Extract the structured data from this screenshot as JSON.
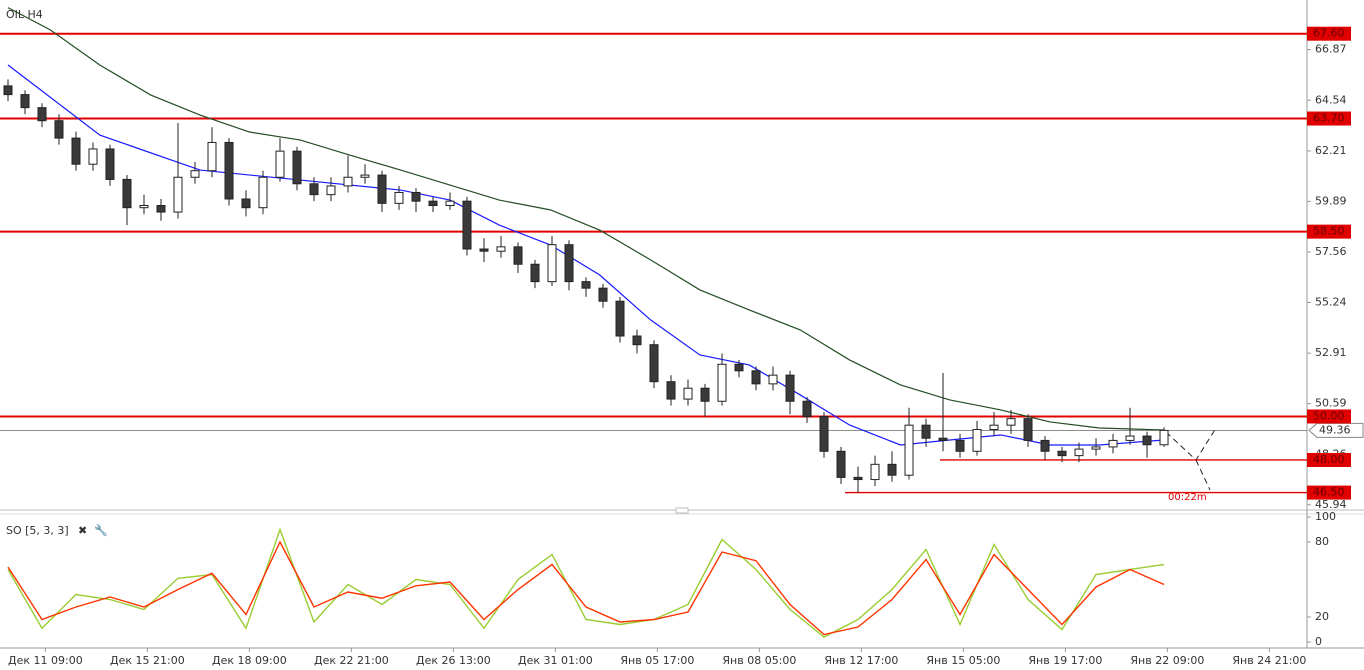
{
  "chart_data": {
    "type": "candlestick",
    "title": "OIL H4",
    "ylim": [
      45.7,
      69.15
    ],
    "yticks": [
      66.87,
      64.54,
      62.21,
      59.89,
      57.56,
      55.24,
      52.91,
      50.59,
      48.26,
      45.94
    ],
    "xlim": [
      -0.47,
      76.41
    ],
    "xticks": [
      {
        "value": 2.2,
        "label": "Дек 11 09:00"
      },
      {
        "value": 8.2,
        "label": "Дек 15 21:00"
      },
      {
        "value": 14.2,
        "label": "Дек 18 09:00"
      },
      {
        "value": 20.2,
        "label": "Дек 22 21:00"
      },
      {
        "value": 26.2,
        "label": "Дек 26 13:00"
      },
      {
        "value": 32.2,
        "label": "Дек 31 01:00"
      },
      {
        "value": 38.2,
        "label": "Янв 05 17:00"
      },
      {
        "value": 44.2,
        "label": "Янв 08 05:00"
      },
      {
        "value": 50.2,
        "label": "Янв 12 17:00"
      },
      {
        "value": 56.2,
        "label": "Янв 15 05:00"
      },
      {
        "value": 62.2,
        "label": "Янв 19 17:00"
      },
      {
        "value": 68.2,
        "label": "Янв 22 09:00"
      },
      {
        "value": 74.2,
        "label": "Янв 24 21:00"
      }
    ],
    "open": [
      65.2,
      64.8,
      64.2,
      63.6,
      62.8,
      61.6,
      62.3,
      60.9,
      59.6,
      59.7,
      59.4,
      61.0,
      61.3,
      62.6,
      60.0,
      59.6,
      61.0,
      62.2,
      60.7,
      60.2,
      60.6,
      61.0,
      61.1,
      59.8,
      60.3,
      59.9,
      59.7,
      59.9,
      57.7,
      57.6,
      57.8,
      57.0,
      56.2,
      57.9,
      56.2,
      55.9,
      55.3,
      53.7,
      53.3,
      51.6,
      50.8,
      51.3,
      50.7,
      52.4,
      52.1,
      51.5,
      51.9,
      50.7,
      50.0,
      48.4,
      47.2,
      47.1,
      47.8,
      47.3,
      49.6,
      49.0,
      48.9,
      48.4,
      49.4,
      49.6,
      49.9,
      48.9,
      48.4,
      48.2,
      48.5,
      48.6,
      48.9,
      49.1,
      48.7
    ],
    "high": [
      65.5,
      65.0,
      64.4,
      63.9,
      63.1,
      62.6,
      62.5,
      61.1,
      60.2,
      60.0,
      63.5,
      61.7,
      63.3,
      62.8,
      60.4,
      61.3,
      62.8,
      62.4,
      61.0,
      61.0,
      62.0,
      61.6,
      61.3,
      60.6,
      60.5,
      60.1,
      60.3,
      60.1,
      58.2,
      58.3,
      58.0,
      57.2,
      58.3,
      58.1,
      56.4,
      56.1,
      55.5,
      54.0,
      53.5,
      51.9,
      51.7,
      51.5,
      52.9,
      52.6,
      52.3,
      52.3,
      52.1,
      50.9,
      50.2,
      48.6,
      47.7,
      48.2,
      48.4,
      50.4,
      49.9,
      52.0,
      49.2,
      49.8,
      50.2,
      50.3,
      50.1,
      49.1,
      48.6,
      48.8,
      49.0,
      49.2,
      50.4,
      49.3,
      49.5
    ],
    "low": [
      64.5,
      63.9,
      63.3,
      62.5,
      61.3,
      61.3,
      60.6,
      58.8,
      59.3,
      59.0,
      59.1,
      60.7,
      61.0,
      59.7,
      59.2,
      59.3,
      60.8,
      60.4,
      59.9,
      59.9,
      60.3,
      60.7,
      59.4,
      59.5,
      59.4,
      59.4,
      59.5,
      57.4,
      57.1,
      57.3,
      56.6,
      55.9,
      56.0,
      55.8,
      55.5,
      55.0,
      53.4,
      52.9,
      51.3,
      50.5,
      50.5,
      50.0,
      50.5,
      51.8,
      51.2,
      51.2,
      50.1,
      49.7,
      48.1,
      46.9,
      46.5,
      46.8,
      47.0,
      47.1,
      48.6,
      48.4,
      48.1,
      48.2,
      49.1,
      49.2,
      48.6,
      48.0,
      47.9,
      47.9,
      48.2,
      48.3,
      48.7,
      48.1,
      48.6
    ],
    "close": [
      64.8,
      64.2,
      63.6,
      62.8,
      61.6,
      62.3,
      60.9,
      59.6,
      59.7,
      59.4,
      61.0,
      61.3,
      62.6,
      60.0,
      59.6,
      61.0,
      62.2,
      60.7,
      60.2,
      60.6,
      61.0,
      61.1,
      59.8,
      60.3,
      59.9,
      59.7,
      59.9,
      57.7,
      57.6,
      57.8,
      57.0,
      56.2,
      57.9,
      56.2,
      55.9,
      55.3,
      53.7,
      53.3,
      51.6,
      50.8,
      51.3,
      50.7,
      52.4,
      52.1,
      51.5,
      51.9,
      50.7,
      50.0,
      48.4,
      47.2,
      47.1,
      47.8,
      47.3,
      49.6,
      49.0,
      48.9,
      48.4,
      49.4,
      49.6,
      49.9,
      48.9,
      48.4,
      48.2,
      48.5,
      48.6,
      48.9,
      49.1,
      48.7,
      49.36
    ],
    "ma_fast": {
      "color": "#1a1aff",
      "x": [
        0,
        5.4,
        11.3,
        17.2,
        23.1,
        26.0,
        28.9,
        31.9,
        34.8,
        37.8,
        40.7,
        43.6,
        46.6,
        49.5,
        52.5,
        55.4,
        58.4,
        61.3,
        64.2,
        68
      ],
      "values": [
        66.16,
        62.94,
        61.33,
        60.87,
        60.41,
        59.95,
        58.8,
        57.89,
        56.51,
        54.44,
        52.83,
        52.37,
        50.99,
        49.61,
        48.69,
        48.92,
        49.15,
        48.69,
        48.69,
        48.92
      ]
    },
    "ma_slow": {
      "color": "#244d24",
      "x": [
        0,
        2.5,
        5.4,
        8.4,
        11.3,
        14.2,
        17.2,
        20.1,
        23.1,
        26.0,
        28.9,
        31.9,
        34.8,
        37.8,
        40.7,
        43.6,
        46.6,
        49.5,
        52.5,
        55.4,
        58.4,
        61.3,
        64.2,
        68
      ],
      "values": [
        68.8,
        67.77,
        66.16,
        64.78,
        63.86,
        63.08,
        62.71,
        62.02,
        61.33,
        60.64,
        59.95,
        59.5,
        58.57,
        57.2,
        55.82,
        54.9,
        53.98,
        52.6,
        51.45,
        50.76,
        50.3,
        49.75,
        49.47,
        49.38
      ]
    },
    "levels": [
      {
        "value": 67.6,
        "label": "67.60"
      },
      {
        "value": 63.7,
        "label": "63.70"
      },
      {
        "value": 58.5,
        "label": "58.50"
      },
      {
        "value": 50.0,
        "label": "50.00"
      },
      {
        "value": 48.0,
        "label": "48.00"
      },
      {
        "value": 46.5,
        "label": "46.50"
      }
    ],
    "current_price": 49.36,
    "timer": "00:22m",
    "oscillator": {
      "title": "SO [5, 3, 3]",
      "ylim": [
        0,
        100
      ],
      "yticks": [
        100,
        80,
        20,
        0
      ],
      "x": [
        0,
        2,
        4,
        6,
        8,
        10,
        12,
        14,
        16,
        18,
        20,
        22,
        24,
        26,
        28,
        30,
        32,
        34,
        36,
        38,
        40,
        42,
        44,
        46,
        48,
        50,
        52,
        54,
        56,
        58,
        60,
        62,
        64,
        66,
        68
      ],
      "k": {
        "color": "#9acd32",
        "values": [
          58,
          11,
          38,
          34,
          26,
          51,
          54,
          11,
          90,
          16,
          46,
          30,
          50,
          46,
          11,
          50,
          70,
          18,
          14,
          18,
          30,
          82,
          58,
          26,
          4,
          18,
          42,
          74,
          14,
          78,
          34,
          10,
          54,
          58,
          62
        ]
      },
      "d": {
        "color": "#ff3300",
        "values": [
          60,
          18,
          28,
          36,
          28,
          42,
          55,
          22,
          80,
          28,
          40,
          35,
          45,
          48,
          18,
          42,
          62,
          28,
          16,
          18,
          24,
          72,
          65,
          30,
          6,
          12,
          34,
          66,
          22,
          70,
          42,
          14,
          44,
          58,
          46
        ]
      }
    }
  }
}
